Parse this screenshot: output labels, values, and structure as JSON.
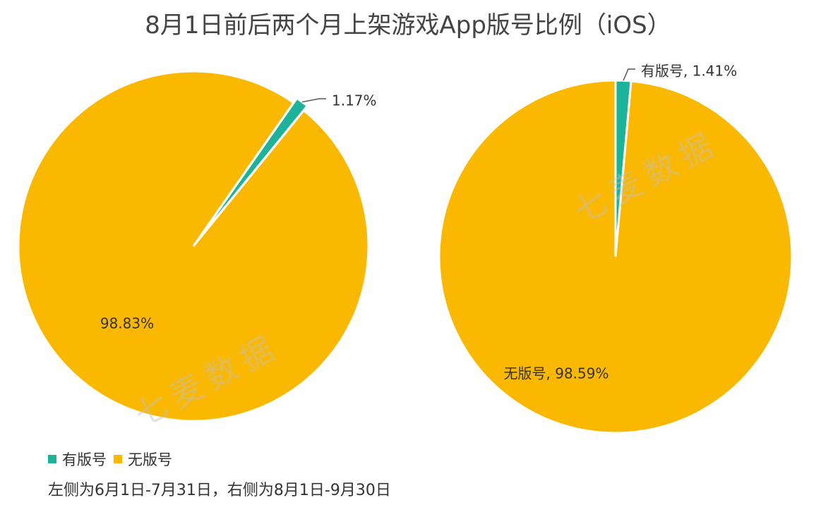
{
  "title": "8月1日前后两个月上架游戏App版号比例（iOS）",
  "colors": {
    "licensed": "#1db39a",
    "unlicensed": "#fbb800"
  },
  "chart_data": [
    {
      "type": "pie",
      "title": "",
      "slices": [
        {
          "name": "有版号",
          "value": 1.17,
          "label": "1.17%"
        },
        {
          "name": "无版号",
          "value": 98.83,
          "label": "98.83%"
        }
      ]
    },
    {
      "type": "pie",
      "title": "",
      "slices": [
        {
          "name": "有版号",
          "value": 1.41,
          "label": "有版号, 1.41%"
        },
        {
          "name": "无版号",
          "value": 98.59,
          "label": "无版号, 98.59%"
        }
      ]
    }
  ],
  "legend": {
    "items": [
      {
        "label": "有版号"
      },
      {
        "label": "无版号"
      }
    ],
    "placement": "bottom-left"
  },
  "footnote": "左侧为6月1日-7月31日，右侧为8月1日-9月30日",
  "watermark": "七麦数据"
}
